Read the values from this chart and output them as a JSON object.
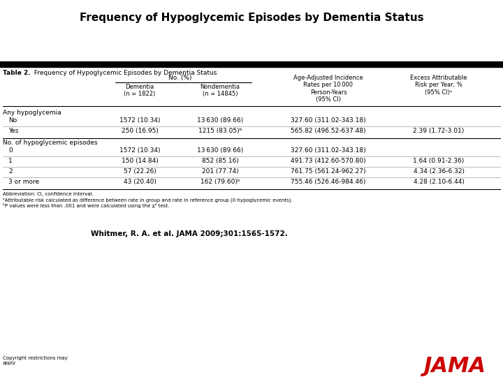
{
  "title": "Frequency of Hypoglycemic Episodes by Dementia Status",
  "table_title_bold": "Table 2.",
  "table_title_rest": " Frequency of Hypoglycemic Episodes by Dementia Status",
  "col_headers": {
    "no_pct": "No. (%)",
    "dementia": "Dementia\n(n = 1822)",
    "nondementia": "Nondementia\n(n = 14845)",
    "incidence": "Age-Adjusted Incidence\nRates per 10 000\nPerson-Years\n(95% CI)",
    "excess": "Excess Attributable\nRisk per Year, %\n(95% CI)ᵃ"
  },
  "section1_label": "Any hypoglycemia",
  "section2_label": "No. of hypoglycemic episodes",
  "rows": [
    {
      "label": "   No",
      "dementia": "1572 (10.34)",
      "nondementia": "13 630 (89.66)",
      "incidence": "327.60 (311.02-343.18)",
      "excess": ""
    },
    {
      "label": "   Yes",
      "dementia": "250 (16.95)",
      "nondementia": "1215 (83.05)ᵇ",
      "incidence": "565.82 (496.52-637.48)",
      "excess": "2.39 (1.72-3.01)"
    },
    {
      "label": "   0",
      "dementia": "1572 (10.34)",
      "nondementia": "13 630 (89.66)",
      "incidence": "327.60 (311.02-343.18)",
      "excess": ""
    },
    {
      "label": "   1",
      "dementia": "150 (14.84)",
      "nondementia": "852 (85.16)",
      "incidence": "491.73 (412.60-570.80)",
      "excess": "1.64 (0.91-2.36)"
    },
    {
      "label": "   2",
      "dementia": "57 (22.26)",
      "nondementia": "201 (77.74)",
      "incidence": "761.75 (561.24-962.27)",
      "excess": "4.34 (2.36-6.32)"
    },
    {
      "label": "   3 or more",
      "dementia": "43 (20.40)",
      "nondementia": "162 (79.60)ᵇ",
      "incidence": "755.46 (526.46-984.46)",
      "excess": "4.28 (2.10-6.44)"
    }
  ],
  "footnotes": [
    "Abbreviation: CI, confidence interval.",
    "ᵃAttributable risk calculated as difference between rate in group and rate in reference group (0 hypoglycemic events).",
    "ᵇP values were less than .001 and were calculated using the χ² test."
  ],
  "citation": "Whitmer, R. A. et al. JAMA 2009;301:1565-1572.",
  "copyright": "Copyright restrictions may\napply",
  "jama_color": "#CC0000",
  "bg_color": "#FFFFFF",
  "table_header_bg": "#000000"
}
